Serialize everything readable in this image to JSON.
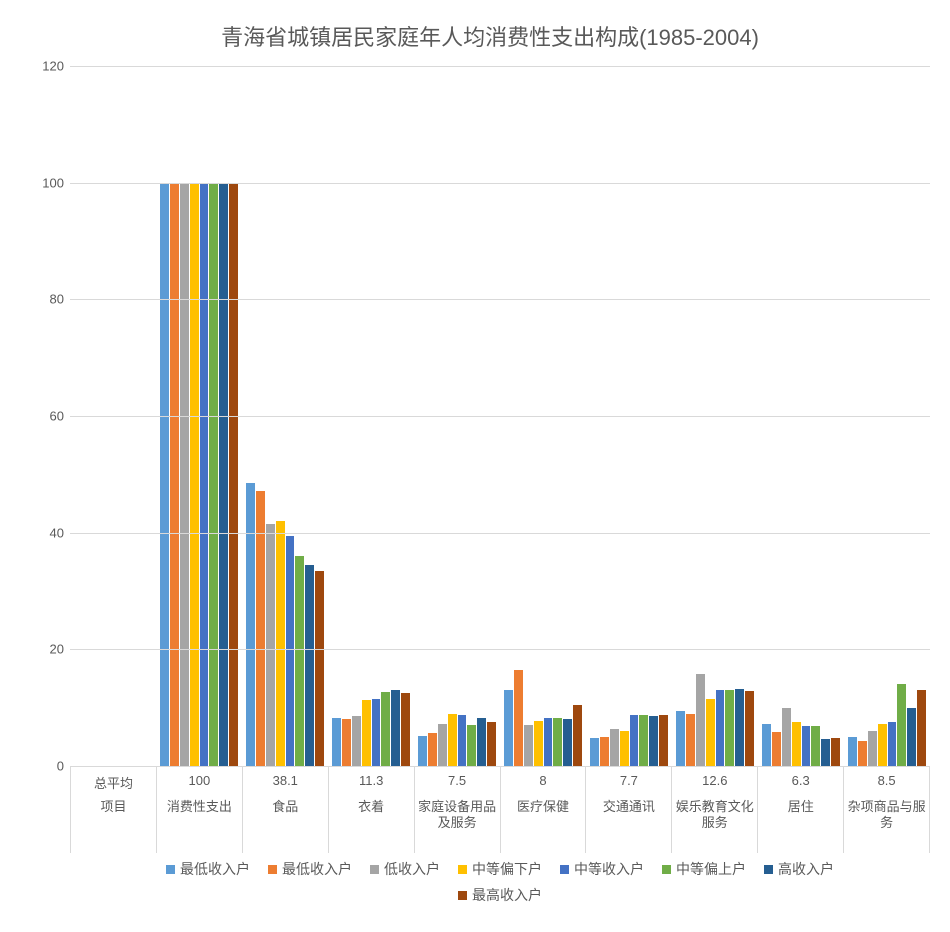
{
  "chart": {
    "type": "bar",
    "title": "青海省城镇居民家庭年人均消费性支出构成(1985-2004)",
    "title_fontsize": 22,
    "title_color": "#595959",
    "background_color": "#ffffff",
    "grid_color": "#d9d9d9",
    "ylim": [
      0,
      120
    ],
    "ytick_step": 20,
    "yticks": [
      0,
      20,
      40,
      60,
      80,
      100,
      120
    ],
    "axis_label_color": "#595959",
    "axis_fontsize": 13,
    "categories_row1": [
      "总平均",
      "100",
      "38.1",
      "11.3",
      "7.5",
      "8",
      "7.7",
      "12.6",
      "6.3",
      "8.5"
    ],
    "categories_row2": [
      "项目",
      "消费性支出",
      "食品",
      "衣着",
      "家庭设备用品及服务",
      "医疗保健",
      "交通通讯",
      "娱乐教育文化服务",
      "居住",
      "杂项商品与服务"
    ],
    "series": [
      {
        "name": "最低收入户",
        "color": "#5b9bd5",
        "values": [
          null,
          100,
          48.5,
          8.2,
          5.2,
          13.0,
          4.8,
          9.4,
          7.2,
          5.0
        ]
      },
      {
        "name": "最低收入户",
        "color": "#ed7d31",
        "values": [
          null,
          100,
          47.2,
          8.0,
          5.6,
          16.5,
          5.0,
          9.0,
          5.8,
          4.3
        ]
      },
      {
        "name": "低收入户",
        "color": "#a5a5a5",
        "values": [
          null,
          100,
          41.5,
          8.6,
          7.2,
          7.0,
          6.3,
          15.8,
          10.0,
          6.0
        ]
      },
      {
        "name": "中等偏下户",
        "color": "#ffc000",
        "values": [
          null,
          100,
          42.0,
          11.3,
          9.0,
          7.8,
          6.0,
          11.5,
          7.5,
          7.2
        ]
      },
      {
        "name": "中等收入户",
        "color": "#4472c4",
        "values": [
          null,
          100,
          39.5,
          11.5,
          8.8,
          8.2,
          8.8,
          13.0,
          6.8,
          7.5
        ]
      },
      {
        "name": "中等偏上户",
        "color": "#70ad47",
        "values": [
          null,
          100,
          36.0,
          12.7,
          7.0,
          8.2,
          8.8,
          13.0,
          6.8,
          14.0
        ]
      },
      {
        "name": "高收入户",
        "color": "#255e91",
        "values": [
          null,
          100,
          34.5,
          13.0,
          8.2,
          8.0,
          8.5,
          13.2,
          4.6,
          10.0
        ]
      },
      {
        "name": "最高收入户",
        "color": "#9e480e",
        "values": [
          null,
          100,
          33.5,
          12.5,
          7.5,
          10.5,
          8.8,
          12.8,
          4.8,
          13.0
        ]
      }
    ],
    "legend_fontsize": 14,
    "legend_color": "#595959"
  }
}
